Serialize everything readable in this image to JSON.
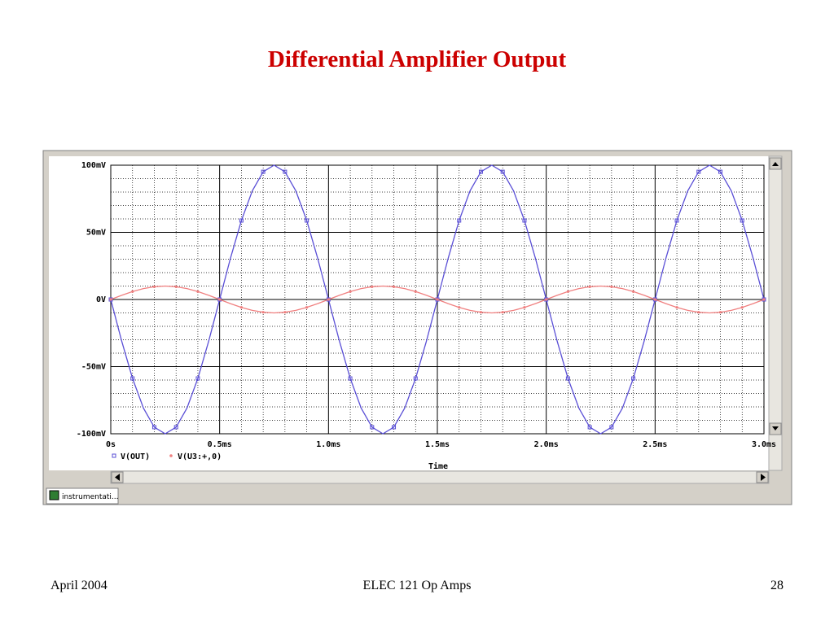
{
  "slide": {
    "title": "Differential Amplifier Output",
    "tab": "instrumentati...",
    "footer_left": "April  2004",
    "footer_center": "ELEC 121  Op Amps",
    "footer_right": "28"
  },
  "chart_data": {
    "type": "line",
    "x_label": "Time",
    "x": [
      0,
      0.05,
      0.1,
      0.15,
      0.2,
      0.25,
      0.3,
      0.35,
      0.4,
      0.45,
      0.5,
      0.55,
      0.6,
      0.65,
      0.7,
      0.75,
      0.8,
      0.85,
      0.9,
      0.95,
      1,
      1.05,
      1.1,
      1.15,
      1.2,
      1.25,
      1.3,
      1.35,
      1.4,
      1.45,
      1.5,
      1.55,
      1.6,
      1.65,
      1.7,
      1.75,
      1.8,
      1.85,
      1.9,
      1.95,
      2,
      2.05,
      2.1,
      2.15,
      2.2,
      2.25,
      2.3,
      2.35,
      2.4,
      2.45,
      2.5,
      2.55,
      2.6,
      2.65,
      2.7,
      2.75,
      2.8,
      2.85,
      2.9,
      2.95,
      3
    ],
    "series": [
      {
        "name": "V(OUT)",
        "color": "#5a4fd6",
        "marker": "square",
        "values": [
          0,
          -30.9,
          -58.8,
          -80.9,
          -95.1,
          -100,
          -95.1,
          -80.9,
          -58.8,
          -30.9,
          0,
          30.9,
          58.8,
          80.9,
          95.1,
          100,
          95.1,
          80.9,
          58.8,
          30.9,
          0,
          -30.9,
          -58.8,
          -80.9,
          -95.1,
          -100,
          -95.1,
          -80.9,
          -58.8,
          -30.9,
          0,
          30.9,
          58.8,
          80.9,
          95.1,
          100,
          95.1,
          80.9,
          58.8,
          30.9,
          0,
          -30.9,
          -58.8,
          -80.9,
          -95.1,
          -100,
          -95.1,
          -80.9,
          -58.8,
          -30.9,
          0,
          30.9,
          58.8,
          80.9,
          95.1,
          100,
          95.1,
          80.9,
          58.8,
          30.9,
          0
        ]
      },
      {
        "name": "V(U3:+,0)",
        "color": "#f08080",
        "marker": "dot",
        "values": [
          0,
          3.1,
          5.9,
          8.1,
          9.5,
          10,
          9.5,
          8.1,
          5.9,
          3.1,
          0,
          -3.1,
          -5.9,
          -8.1,
          -9.5,
          -10,
          -9.5,
          -8.1,
          -5.9,
          -3.1,
          0,
          3.1,
          5.9,
          8.1,
          9.5,
          10,
          9.5,
          8.1,
          5.9,
          3.1,
          0,
          -3.1,
          -5.9,
          -8.1,
          -9.5,
          -10,
          -9.5,
          -8.1,
          -5.9,
          -3.1,
          0,
          3.1,
          5.9,
          8.1,
          9.5,
          10,
          9.5,
          8.1,
          5.9,
          3.1,
          0,
          -3.1,
          -5.9,
          -8.1,
          -9.5,
          -10,
          -9.5,
          -8.1,
          -5.9,
          -3.1,
          0
        ]
      }
    ],
    "xlim": [
      0,
      3
    ],
    "xticks": [
      {
        "value": 0,
        "label": "0s"
      },
      {
        "value": 0.5,
        "label": "0.5ms"
      },
      {
        "value": 1,
        "label": "1.0ms"
      },
      {
        "value": 1.5,
        "label": "1.5ms"
      },
      {
        "value": 2,
        "label": "2.0ms"
      },
      {
        "value": 2.5,
        "label": "2.5ms"
      },
      {
        "value": 3,
        "label": "3.0ms"
      }
    ],
    "ylim": [
      -100,
      100
    ],
    "yticks": [
      {
        "value": -100,
        "label": "-100mV"
      },
      {
        "value": -50,
        "label": "-50mV"
      },
      {
        "value": 0,
        "label": "0V"
      },
      {
        "value": 50,
        "label": "50mV"
      },
      {
        "value": 100,
        "label": "100mV"
      }
    ],
    "grid": true
  }
}
